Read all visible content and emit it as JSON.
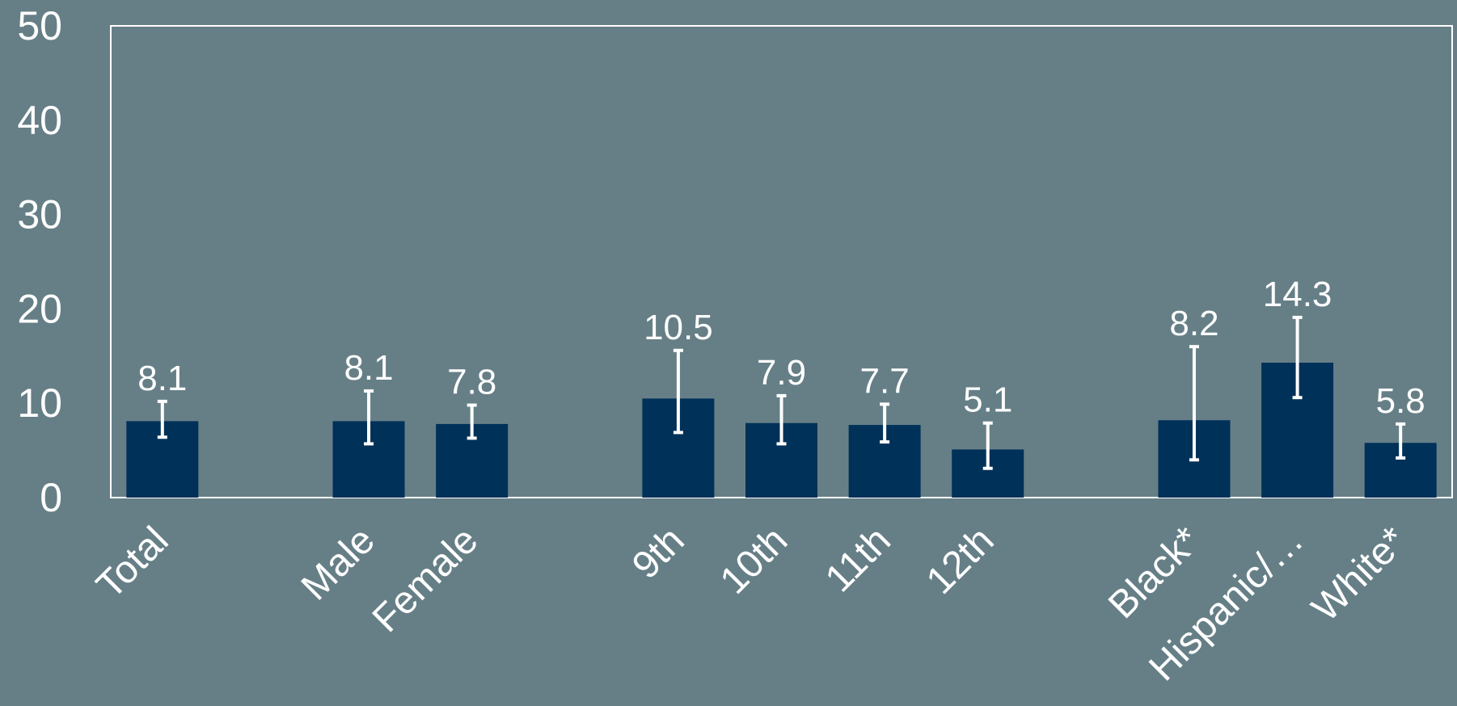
{
  "colors": {
    "background": "#667f87",
    "bar": "#003159",
    "text": "#ffffff",
    "frame": "#ffffff",
    "error_bar": "#ffffff"
  },
  "chart_data": {
    "type": "bar",
    "title": "",
    "xlabel": "",
    "ylabel": "",
    "ylim": [
      0,
      50
    ],
    "y_ticks": [
      0,
      10,
      20,
      30,
      40,
      50
    ],
    "grid": false,
    "legend": "none",
    "error_bars": true,
    "categories": [
      "Total",
      "",
      "Male",
      "Female",
      "",
      "9th",
      "10th",
      "11th",
      "12th",
      "",
      "Black*",
      "Hispanic/…",
      "White*"
    ],
    "values": [
      8.1,
      null,
      8.1,
      7.8,
      null,
      10.5,
      7.9,
      7.7,
      5.1,
      null,
      8.2,
      14.3,
      5.8
    ],
    "data_labels": [
      "8.1",
      "",
      "8.1",
      "7.8",
      "",
      "10.5",
      "7.9",
      "7.7",
      "5.1",
      "",
      "8.2",
      "14.3",
      "5.8"
    ],
    "error_low": [
      6.4,
      null,
      5.7,
      6.3,
      null,
      6.9,
      5.7,
      5.9,
      3.1,
      null,
      4.0,
      10.6,
      4.2
    ],
    "error_high": [
      10.2,
      null,
      11.3,
      9.8,
      null,
      15.6,
      10.8,
      9.9,
      7.9,
      null,
      16.0,
      19.1,
      7.8
    ]
  }
}
